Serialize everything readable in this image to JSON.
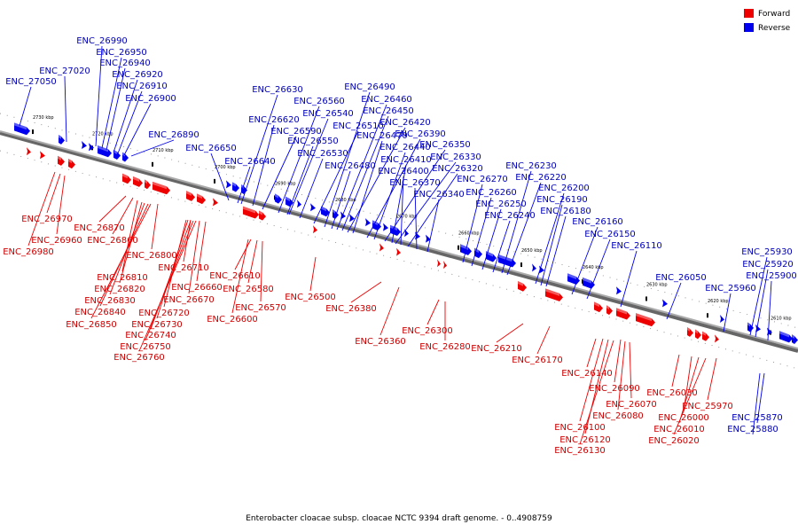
{
  "legend": {
    "forward_label": "Forward",
    "reverse_label": "Reverse",
    "forward_color": "#ee0000",
    "reverse_color": "#0000ee"
  },
  "caption": "Enterobacter cloacae subsp. cloacae NCTC 9394 draft genome. - 0..4908759",
  "kbp_ticks": [
    "2730 kbp",
    "2720 kbp",
    "2710 kbp",
    "2700 kbp",
    "2690 kbp",
    "2680 kbp",
    "2670 kbp",
    "2660 kbp",
    "2650 kbp",
    "2640 kbp",
    "2630 kbp",
    "2620 kbp",
    "2610 kbp"
  ],
  "reverse_labels": [
    "ENC_26990",
    "ENC_26950",
    "ENC_26940",
    "ENC_27020",
    "ENC_26920",
    "ENC_27050",
    "ENC_26910",
    "ENC_26900",
    "ENC_26890",
    "ENC_26650",
    "ENC_26640",
    "ENC_26630",
    "ENC_26620",
    "ENC_26560",
    "ENC_26540",
    "ENC_26590",
    "ENC_26550",
    "ENC_26530",
    "ENC_26490",
    "ENC_26460",
    "ENC_26450",
    "ENC_26510",
    "ENC_26420",
    "ENC_26470",
    "ENC_26390",
    "ENC_26440",
    "ENC_26350",
    "ENC_26410",
    "ENC_26480",
    "ENC_26330",
    "ENC_26400",
    "ENC_26320",
    "ENC_26370",
    "ENC_26340",
    "ENC_26270",
    "ENC_26230",
    "ENC_26260",
    "ENC_26220",
    "ENC_26250",
    "ENC_26200",
    "ENC_26240",
    "ENC_26190",
    "ENC_26180",
    "ENC_26160",
    "ENC_26150",
    "ENC_26110",
    "ENC_26050",
    "ENC_25960",
    "ENC_25930",
    "ENC_25920",
    "ENC_25900",
    "ENC_25870",
    "ENC_25880"
  ],
  "forward_labels": [
    "ENC_26970",
    "ENC_26960",
    "ENC_26980",
    "ENC_26870",
    "ENC_26860",
    "ENC_26800",
    "ENC_26810",
    "ENC_26820",
    "ENC_26830",
    "ENC_26840",
    "ENC_26850",
    "ENC_26710",
    "ENC_26660",
    "ENC_26670",
    "ENC_26720",
    "ENC_26730",
    "ENC_26740",
    "ENC_26750",
    "ENC_26760",
    "ENC_26610",
    "ENC_26580",
    "ENC_26570",
    "ENC_26600",
    "ENC_26500",
    "ENC_26380",
    "ENC_26360",
    "ENC_26300",
    "ENC_26280",
    "ENC_26210",
    "ENC_26170",
    "ENC_26140",
    "ENC_26090",
    "ENC_26070",
    "ENC_26080",
    "ENC_26100",
    "ENC_26120",
    "ENC_26130",
    "ENC_26030",
    "ENC_25970",
    "ENC_26000",
    "ENC_26010",
    "ENC_26020"
  ]
}
